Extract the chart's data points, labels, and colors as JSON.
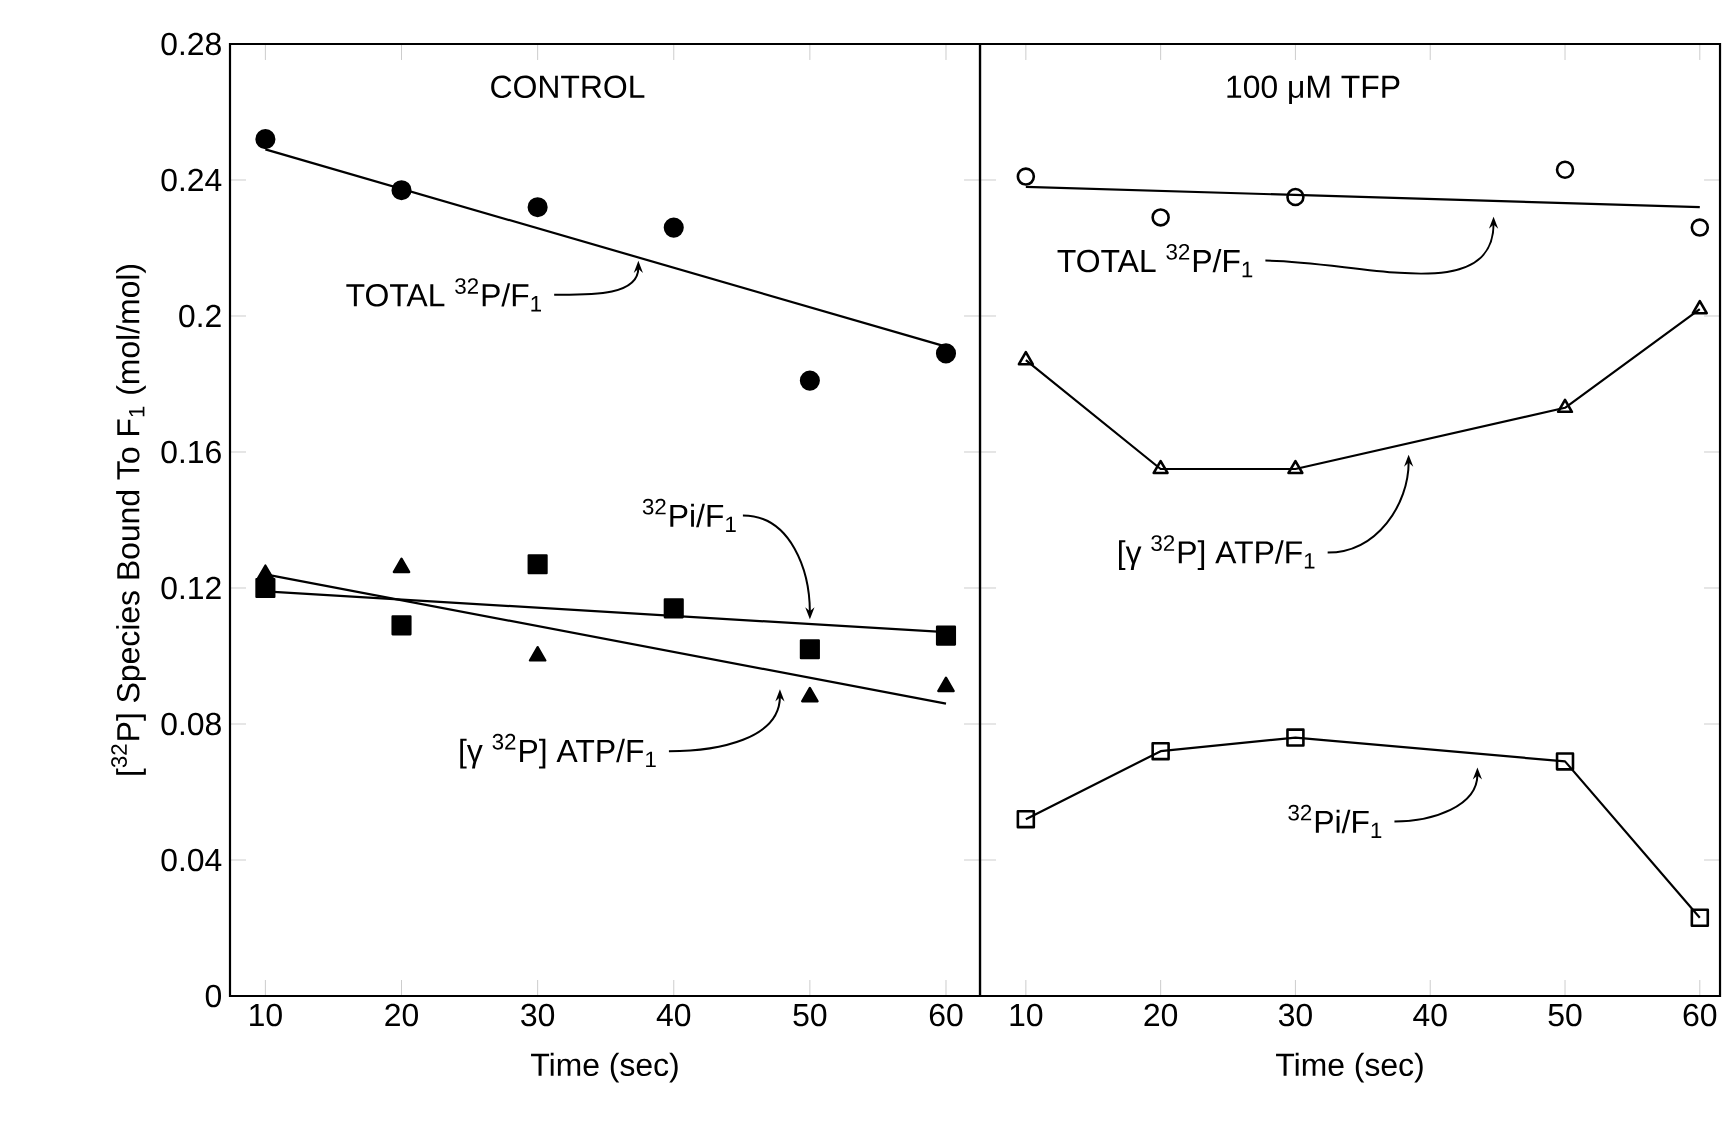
{
  "chart_data": [
    {
      "type": "scatter",
      "ylabel": "[$^{32}$P] Species Bound To F$_{1}$ (mol/mol)",
      "xlabel": "Time (sec)",
      "x": [
        10,
        20,
        30,
        40,
        50,
        60
      ],
      "series": [
        {
          "color": "#000000",
          "marker": "circle",
          "values": [
            0.252,
            0.237,
            0.232,
            0.226,
            0.181,
            0.189
          ]
        },
        {
          "type": "line",
          "color": "#000000",
          "marker": "none",
          "x": [
            10,
            60
          ],
          "values": [
            0.249,
            0.191
          ]
        },
        {
          "color": "#000000",
          "marker": "square",
          "values": [
            0.12,
            0.109,
            0.127,
            0.114,
            0.102,
            0.106
          ]
        },
        {
          "type": "line",
          "color": "#000000",
          "marker": "none",
          "x": [
            10,
            60
          ],
          "values": [
            0.119,
            0.107
          ]
        },
        {
          "color": "#000000",
          "marker": "triangle",
          "values": [
            0.124,
            0.126,
            0.1,
            null,
            0.088,
            0.091
          ]
        },
        {
          "type": "line",
          "color": "#000000",
          "marker": "none",
          "x": [
            10,
            60
          ],
          "values": [
            0.124,
            0.086
          ]
        }
      ],
      "annotations": [
        "CONTROL",
        {
          "text": "TOTAL $^{32}$P/F$_{1}$",
          "x": 37.4,
          "y": 0.218
        },
        {
          "text": "$^{32}$Pi/F$_{1}$",
          "x": 50,
          "y": 0.109
        },
        {
          "text": "[γ $^{32}$P] ATP/F$_{1}$",
          "x": 47.8,
          "y": 0.092
        }
      ],
      "xlim": [
        7.4,
        62.5
      ],
      "ylim": [
        0,
        0.28
      ],
      "xticks": [
        10,
        20,
        30,
        40,
        50,
        60
      ],
      "yticks": [
        0,
        0.04,
        0.08,
        0.12,
        0.16,
        0.2,
        0.24,
        0.28
      ]
    },
    {
      "type": "scatter",
      "xlabel": "Time (sec)",
      "series": [
        {
          "color": "#000000",
          "marker": "circle",
          "x": [
            10,
            20,
            30,
            50,
            60
          ],
          "values": [
            0.241,
            0.229,
            0.235,
            0.243,
            0.226
          ]
        },
        {
          "type": "line",
          "color": "#000000",
          "marker": "none",
          "x": [
            10,
            60
          ],
          "values": [
            0.238,
            0.232
          ]
        },
        {
          "type": "line",
          "color": "#000000",
          "marker": "triangle",
          "x": [
            10,
            20,
            30,
            50,
            60
          ],
          "values": [
            0.187,
            0.155,
            0.155,
            0.173,
            0.202
          ]
        },
        {
          "type": "line",
          "color": "#000000",
          "marker": "square",
          "x": [
            10,
            20,
            30,
            50,
            60
          ],
          "values": [
            0.052,
            0.072,
            0.076,
            0.069,
            0.023
          ]
        }
      ],
      "annotations": [
        "100 μM TFP",
        {
          "text": "TOTAL $^{32}$P/F$_{1}$",
          "x": 44.7,
          "y": 0.231
        },
        {
          "text": "[γ $^{32}$P] ATP/F$_{1}$",
          "x": 38.4,
          "y": 0.161
        },
        {
          "text": "$^{32}$Pi/F$_{1}$",
          "x": 43.5,
          "y": 0.069
        }
      ],
      "xlim": [
        6.6,
        61.5
      ],
      "ylim": [
        0,
        0.28
      ],
      "xticks": [
        10,
        20,
        30,
        40,
        50,
        60
      ],
      "yticks": [
        0,
        0.04,
        0.08,
        0.12,
        0.16,
        0.2,
        0.24,
        0.28
      ],
      "tick_labels": "x"
    }
  ]
}
